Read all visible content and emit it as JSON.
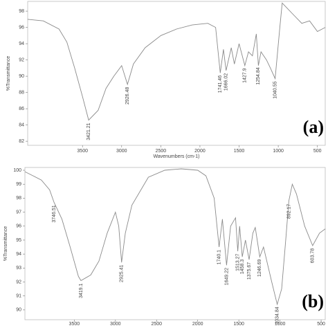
{
  "chart_data": [
    {
      "type": "line",
      "label": "(a)",
      "x_label": "Wavenumbers (cm-1)",
      "y_label": "%Transmittance",
      "color": "#8a8a8a",
      "xlim": [
        4200,
        400
      ],
      "ylim": [
        81.5,
        99.2
      ],
      "xticks": [
        3500,
        3000,
        2500,
        2000,
        1500,
        1000,
        500
      ],
      "yticks": [
        82,
        84,
        86,
        88,
        90,
        92,
        94,
        96,
        98
      ],
      "x": [
        4200,
        4000,
        3800,
        3700,
        3600,
        3500,
        3421,
        3300,
        3200,
        3100,
        3000,
        2926,
        2850,
        2700,
        2500,
        2300,
        2100,
        1900,
        1800,
        1741,
        1700,
        1666,
        1600,
        1560,
        1500,
        1427,
        1380,
        1330,
        1280,
        1254,
        1220,
        1150,
        1100,
        1040,
        980,
        950,
        900,
        800,
        700,
        600,
        500,
        400
      ],
      "values": [
        97,
        96.8,
        95.8,
        94.2,
        91,
        87.5,
        84.6,
        85.8,
        88.5,
        90,
        91.3,
        89,
        91.5,
        93.5,
        95,
        95.8,
        96.3,
        96.5,
        96,
        90.4,
        93.3,
        90.7,
        93.5,
        91.5,
        94,
        91.3,
        93,
        92.5,
        95.2,
        91.3,
        93,
        92,
        91,
        89.7,
        96,
        99,
        98.5,
        97.5,
        96.5,
        96.8,
        95.5,
        96
      ],
      "peaks": [
        3421.21,
        2926.48,
        1741.46,
        1666.02,
        1427.9,
        1254.84,
        1040.55
      ]
    },
    {
      "type": "line",
      "label": "(b)",
      "y_label": "%Transmittance",
      "color": "#8a8a8a",
      "xlim": [
        4100,
        450
      ],
      "ylim": [
        89.3,
        100.2
      ],
      "xticks": [
        3500,
        3000,
        2500,
        2000,
        1500,
        1000,
        500
      ],
      "yticks": [
        90,
        91,
        92,
        93,
        94,
        95,
        96,
        97,
        98,
        99,
        100
      ],
      "x": [
        4100,
        4000,
        3900,
        3800,
        3746,
        3650,
        3550,
        3450,
        3419,
        3300,
        3200,
        3100,
        3000,
        2960,
        2925,
        2880,
        2800,
        2600,
        2400,
        2200,
        2000,
        1900,
        1800,
        1740,
        1700,
        1649,
        1600,
        1540,
        1513,
        1490,
        1458,
        1420,
        1375,
        1330,
        1300,
        1246,
        1200,
        1100,
        1034,
        980,
        930,
        892,
        850,
        800,
        700,
        603,
        520,
        450
      ],
      "values": [
        99.9,
        99.6,
        99.3,
        98.6,
        97.7,
        96.5,
        94.5,
        92.4,
        92.1,
        92.5,
        93.5,
        95.5,
        97,
        96,
        93.4,
        95.5,
        97.5,
        99.5,
        100,
        100.1,
        100,
        99.6,
        98,
        94.5,
        96.5,
        93.2,
        96,
        96.6,
        94.2,
        96,
        93.8,
        95,
        93.6,
        95.5,
        95.9,
        93.8,
        94.5,
        92,
        90.4,
        91.5,
        95,
        97.8,
        99,
        98.3,
        96,
        94.6,
        95.5,
        95.8
      ],
      "peaks": [
        3746.51,
        3419.1,
        2925.41,
        1740.1,
        1649.22,
        1513.27,
        1458.3,
        1375.67,
        1246.69,
        1034.84,
        892.17,
        603.78
      ]
    }
  ]
}
